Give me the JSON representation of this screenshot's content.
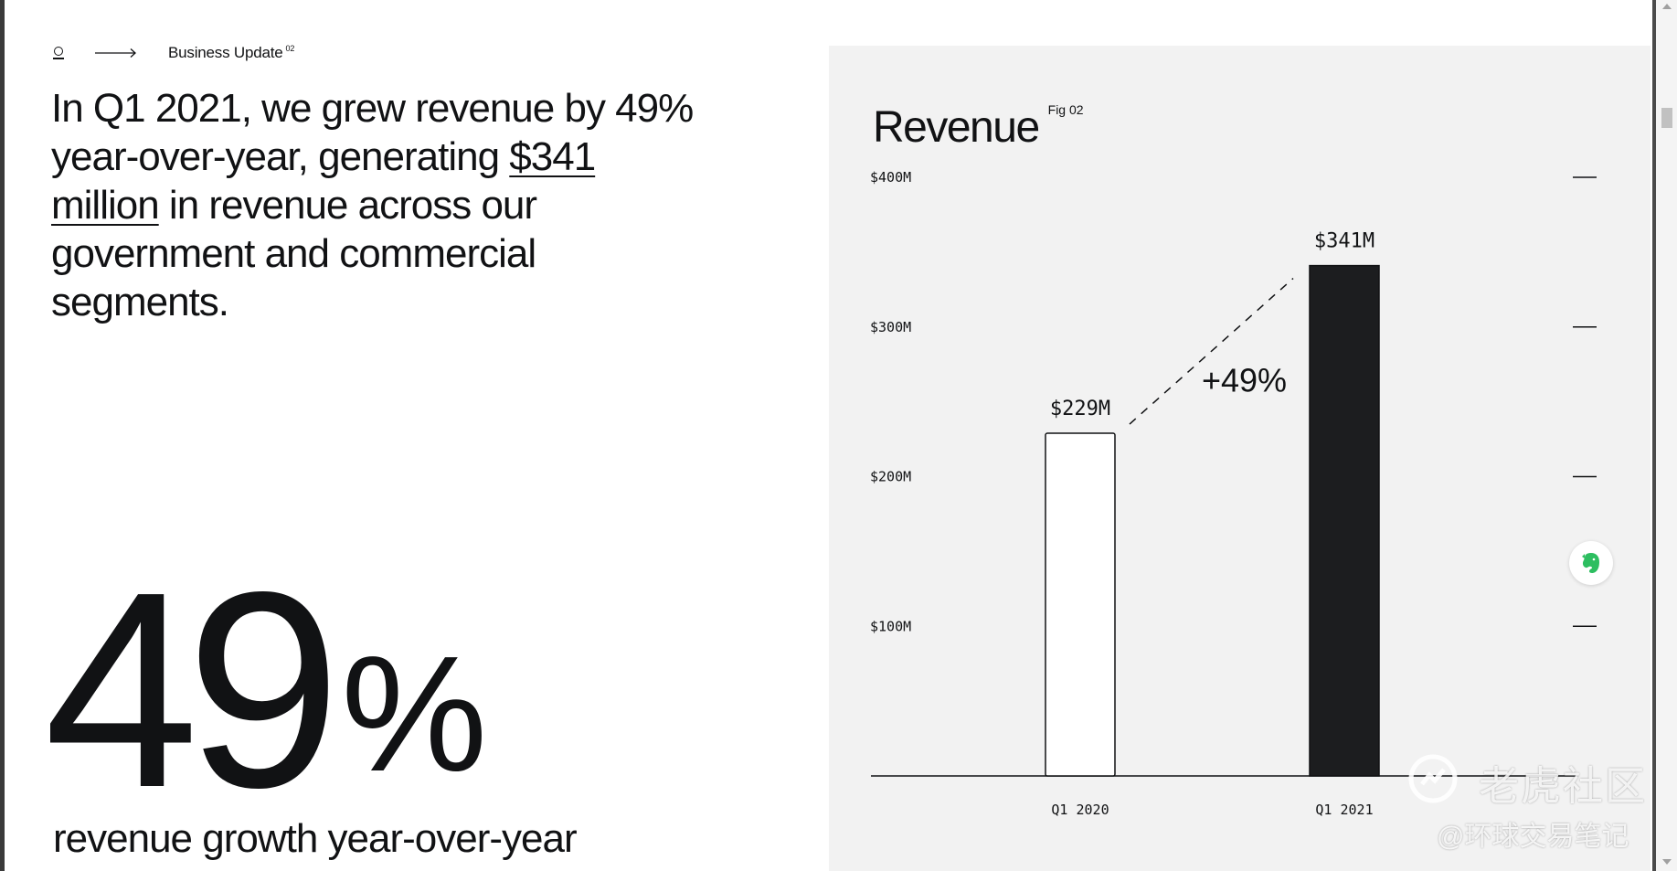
{
  "nav": {
    "logo_icon": "palantir-logo-icon",
    "arrow_icon": "long-arrow-right-icon",
    "section_label": "Business Update",
    "section_number": "02"
  },
  "headline": {
    "before": "In Q1 2021, we grew revenue by 49% year-over-year, generating ",
    "highlight": "$341 million",
    "after": " in revenue across our government and commercial segments."
  },
  "stat": {
    "number": "49",
    "percent_sign": "%",
    "caption": "revenue growth year-over-year"
  },
  "chart_data": {
    "type": "bar",
    "title": "Revenue",
    "fig_label": "Fig 02",
    "categories": [
      "Q1 2020",
      "Q1 2021"
    ],
    "values": [
      229,
      341
    ],
    "value_labels": [
      "$229M",
      "$341M"
    ],
    "ylim": [
      0,
      400
    ],
    "yticks": [
      100,
      200,
      300,
      400
    ],
    "ytick_labels": [
      "$100M",
      "$200M",
      "$300M",
      "$400M"
    ],
    "annotation": "+49%",
    "bar_styles": [
      "outline",
      "filled"
    ],
    "grid": false,
    "colors": {
      "background": "#f2f2f2",
      "bar_fill": "#1c1d1f",
      "ink": "#111214"
    }
  },
  "extension": {
    "icon": "evernote-elephant-icon",
    "color": "#2dbe60"
  },
  "watermark": {
    "main": "老虎社区",
    "sub": "@环球交易笔记",
    "icon": "tiger-community-logo-icon"
  }
}
